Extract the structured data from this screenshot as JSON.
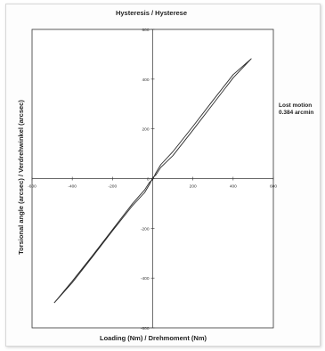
{
  "chart_data": {
    "type": "line",
    "title": "Hysteresis / Hysterese",
    "xlabel": "Loading (Nm) / Drehmoment (Nm)",
    "ylabel": "Torsional angle (arcsec) / Verdrehwinkel (arcsec)",
    "xlim": [
      -600,
      600
    ],
    "ylim": [
      -600,
      600
    ],
    "x_ticks": [
      -600,
      -400,
      -200,
      0,
      200,
      400,
      600
    ],
    "y_ticks": [
      -600,
      -400,
      -200,
      0,
      200,
      400,
      600
    ],
    "grid": false,
    "series": [
      {
        "values_x": [
          -490,
          -400,
          -300,
          -200,
          -100,
          -40,
          -15,
          0,
          15,
          40,
          100,
          200,
          300,
          400,
          490,
          400,
          300,
          200,
          100,
          40,
          15,
          0,
          -15,
          -40,
          -100,
          -200,
          -300,
          -400,
          -490
        ],
        "values_y": [
          -500,
          -412,
          -310,
          -205,
          -100,
          -45,
          -14,
          -4,
          22,
          56,
          108,
          210,
          315,
          418,
          482,
          405,
          300,
          195,
          92,
          45,
          14,
          4,
          -22,
          -56,
          -108,
          -210,
          -315,
          -418,
          -500
        ]
      }
    ],
    "annotation": {
      "line1": "Lost motion",
      "line2": "0.384 arcmin"
    },
    "colors": {
      "line": "#2b2b2b",
      "axis": "#333333",
      "background": "#ffffff"
    }
  }
}
